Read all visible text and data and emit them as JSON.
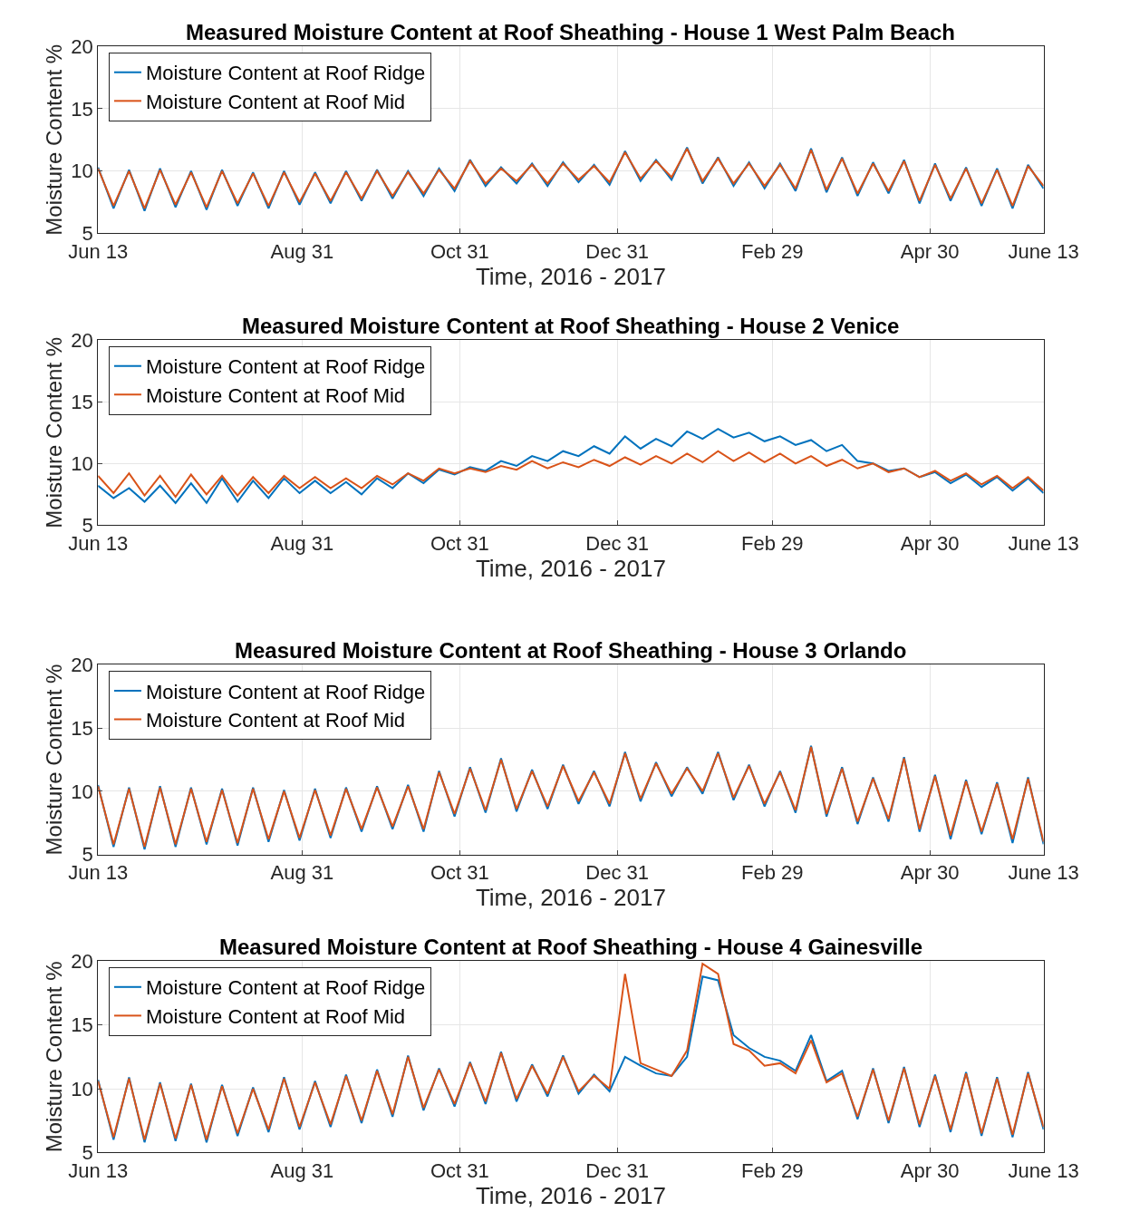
{
  "chart_data": [
    {
      "type": "line",
      "x": [
        "2015-06-13",
        "2015-06-19",
        "2015-06-25",
        "2015-07-01",
        "2015-07-07",
        "2015-07-13",
        "2015-07-19",
        "2015-07-25",
        "2015-07-31",
        "2015-08-06",
        "2015-08-12",
        "2015-08-18",
        "2015-08-24",
        "2015-08-30",
        "2015-09-05",
        "2015-09-11",
        "2015-09-17",
        "2015-09-23",
        "2015-09-29",
        "2015-10-05",
        "2015-10-11",
        "2015-10-17",
        "2015-10-23",
        "2015-10-29",
        "2015-11-04",
        "2015-11-10",
        "2015-11-16",
        "2015-11-22",
        "2015-11-28",
        "2015-12-04",
        "2015-12-10",
        "2015-12-16",
        "2015-12-22",
        "2015-12-28",
        "2016-01-03",
        "2016-01-09",
        "2016-01-15",
        "2016-01-21",
        "2016-01-27",
        "2016-02-02",
        "2016-02-08",
        "2016-02-14",
        "2016-02-20",
        "2016-02-26",
        "2016-03-03",
        "2016-03-09",
        "2016-03-15",
        "2016-03-21",
        "2016-03-27",
        "2016-04-02",
        "2016-04-08",
        "2016-04-14",
        "2016-04-20",
        "2016-04-26",
        "2016-05-02",
        "2016-05-08",
        "2016-05-14",
        "2016-05-20",
        "2016-05-26",
        "2016-06-01",
        "2016-06-07",
        "2016-06-13"
      ],
      "title": "Measured Moisture Content at Roof Sheathing - House 1 West Palm Beach",
      "xlabel": "Time, 2016 - 2017",
      "ylabel": "Moisture Content %",
      "xlim": [
        "2015-06-13",
        "2016-06-13"
      ],
      "xticks": [
        {
          "value": "2015-06-13",
          "label": "Jun 13"
        },
        {
          "value": "2015-08-31",
          "label": "Aug 31"
        },
        {
          "value": "2015-10-31",
          "label": "Oct 31"
        },
        {
          "value": "2015-12-31",
          "label": "Dec 31"
        },
        {
          "value": "2016-02-29",
          "label": "Feb 29"
        },
        {
          "value": "2016-04-30",
          "label": "Apr 30"
        },
        {
          "value": "2016-06-13",
          "label": "June 13"
        }
      ],
      "ylim": [
        5,
        20
      ],
      "yticks": [
        5,
        10,
        15,
        20
      ],
      "grid": true,
      "legend": "top left",
      "series": [
        {
          "name": "Moisture Content at Roof Ridge",
          "color": "#0072bd",
          "values": [
            10.3,
            7.0,
            10.1,
            6.8,
            10.2,
            7.1,
            10.0,
            6.9,
            10.1,
            7.2,
            9.9,
            7.0,
            10.0,
            7.3,
            9.9,
            7.4,
            10.0,
            7.6,
            10.1,
            7.8,
            10.0,
            8.0,
            10.2,
            8.4,
            10.9,
            8.8,
            10.3,
            9.0,
            10.6,
            8.8,
            10.7,
            9.1,
            10.5,
            8.9,
            11.6,
            9.2,
            10.9,
            9.3,
            11.9,
            9.0,
            11.1,
            8.8,
            10.7,
            8.6,
            10.6,
            8.4,
            11.8,
            8.3,
            11.1,
            8.0,
            10.7,
            8.2,
            10.9,
            7.4,
            10.6,
            7.6,
            10.3,
            7.2,
            10.2,
            7.0,
            10.5,
            8.6
          ]
        },
        {
          "name": "Moisture Content at Roof Mid",
          "color": "#d95319",
          "values": [
            10.2,
            7.2,
            10.0,
            7.0,
            10.1,
            7.3,
            9.9,
            7.1,
            10.0,
            7.4,
            9.8,
            7.2,
            9.9,
            7.5,
            9.8,
            7.6,
            9.9,
            7.8,
            10.0,
            8.0,
            9.9,
            8.2,
            10.1,
            8.6,
            10.8,
            9.0,
            10.2,
            9.2,
            10.5,
            9.0,
            10.6,
            9.3,
            10.4,
            9.1,
            11.5,
            9.4,
            10.8,
            9.5,
            11.8,
            9.2,
            11.0,
            9.0,
            10.6,
            8.8,
            10.5,
            8.6,
            11.7,
            8.5,
            11.0,
            8.2,
            10.6,
            8.4,
            10.8,
            7.6,
            10.5,
            7.8,
            10.2,
            7.4,
            10.1,
            7.2,
            10.4,
            8.8
          ]
        }
      ]
    },
    {
      "type": "line",
      "x": [
        "2015-06-13",
        "2015-06-19",
        "2015-06-25",
        "2015-07-01",
        "2015-07-07",
        "2015-07-13",
        "2015-07-19",
        "2015-07-25",
        "2015-07-31",
        "2015-08-06",
        "2015-08-12",
        "2015-08-18",
        "2015-08-24",
        "2015-08-30",
        "2015-09-05",
        "2015-09-11",
        "2015-09-17",
        "2015-09-23",
        "2015-09-29",
        "2015-10-05",
        "2015-10-11",
        "2015-10-17",
        "2015-10-23",
        "2015-10-29",
        "2015-11-04",
        "2015-11-10",
        "2015-11-16",
        "2015-11-22",
        "2015-11-28",
        "2015-12-04",
        "2015-12-10",
        "2015-12-16",
        "2015-12-22",
        "2015-12-28",
        "2016-01-03",
        "2016-01-09",
        "2016-01-15",
        "2016-01-21",
        "2016-01-27",
        "2016-02-02",
        "2016-02-08",
        "2016-02-14",
        "2016-02-20",
        "2016-02-26",
        "2016-03-03",
        "2016-03-09",
        "2016-03-15",
        "2016-03-21",
        "2016-03-27",
        "2016-04-02",
        "2016-04-08",
        "2016-04-14",
        "2016-04-20",
        "2016-04-26",
        "2016-05-02",
        "2016-05-08",
        "2016-05-14",
        "2016-05-20",
        "2016-05-26",
        "2016-06-01",
        "2016-06-07",
        "2016-06-13"
      ],
      "title": "Measured Moisture Content at Roof Sheathing - House 2 Venice",
      "xlabel": "Time, 2016 - 2017",
      "ylabel": "Moisture Content %",
      "xlim": [
        "2015-06-13",
        "2016-06-13"
      ],
      "xticks": [
        {
          "value": "2015-06-13",
          "label": "Jun 13"
        },
        {
          "value": "2015-08-31",
          "label": "Aug 31"
        },
        {
          "value": "2015-10-31",
          "label": "Oct 31"
        },
        {
          "value": "2015-12-31",
          "label": "Dec 31"
        },
        {
          "value": "2016-02-29",
          "label": "Feb 29"
        },
        {
          "value": "2016-04-30",
          "label": "Apr 30"
        },
        {
          "value": "2016-06-13",
          "label": "June 13"
        }
      ],
      "ylim": [
        5,
        20
      ],
      "yticks": [
        5,
        10,
        15,
        20
      ],
      "grid": true,
      "legend": "top left",
      "series": [
        {
          "name": "Moisture Content at Roof Ridge",
          "color": "#0072bd",
          "values": [
            8.2,
            7.2,
            8.0,
            6.9,
            8.2,
            6.8,
            8.4,
            6.8,
            8.8,
            6.9,
            8.6,
            7.2,
            8.8,
            7.6,
            8.6,
            7.6,
            8.5,
            7.5,
            8.8,
            8.0,
            9.2,
            8.4,
            9.5,
            9.1,
            9.7,
            9.4,
            10.2,
            9.8,
            10.6,
            10.2,
            11.0,
            10.6,
            11.4,
            10.8,
            12.2,
            11.2,
            12.0,
            11.4,
            12.6,
            12.0,
            12.8,
            12.1,
            12.5,
            11.8,
            12.2,
            11.5,
            11.9,
            11.0,
            11.5,
            10.2,
            10.0,
            9.4,
            9.6,
            8.9,
            9.3,
            8.4,
            9.1,
            8.1,
            8.9,
            7.8,
            8.8,
            7.6
          ]
        },
        {
          "name": "Moisture Content at Roof Mid",
          "color": "#d95319",
          "values": [
            9.0,
            7.6,
            9.2,
            7.4,
            9.0,
            7.3,
            9.1,
            7.5,
            9.0,
            7.4,
            8.9,
            7.6,
            9.0,
            8.0,
            8.9,
            8.0,
            8.8,
            8.0,
            9.0,
            8.3,
            9.2,
            8.6,
            9.6,
            9.2,
            9.6,
            9.3,
            9.8,
            9.5,
            10.2,
            9.6,
            10.1,
            9.7,
            10.3,
            9.8,
            10.5,
            9.9,
            10.6,
            10.0,
            10.8,
            10.1,
            11.0,
            10.2,
            10.9,
            10.1,
            10.8,
            10.0,
            10.6,
            9.8,
            10.3,
            9.6,
            10.0,
            9.3,
            9.6,
            8.9,
            9.4,
            8.6,
            9.2,
            8.3,
            9.0,
            8.0,
            8.9,
            7.8
          ]
        }
      ]
    },
    {
      "type": "line",
      "x": [
        "2015-06-13",
        "2015-06-19",
        "2015-06-25",
        "2015-07-01",
        "2015-07-07",
        "2015-07-13",
        "2015-07-19",
        "2015-07-25",
        "2015-07-31",
        "2015-08-06",
        "2015-08-12",
        "2015-08-18",
        "2015-08-24",
        "2015-08-30",
        "2015-09-05",
        "2015-09-11",
        "2015-09-17",
        "2015-09-23",
        "2015-09-29",
        "2015-10-05",
        "2015-10-11",
        "2015-10-17",
        "2015-10-23",
        "2015-10-29",
        "2015-11-04",
        "2015-11-10",
        "2015-11-16",
        "2015-11-22",
        "2015-11-28",
        "2015-12-04",
        "2015-12-10",
        "2015-12-16",
        "2015-12-22",
        "2015-12-28",
        "2016-01-03",
        "2016-01-09",
        "2016-01-15",
        "2016-01-21",
        "2016-01-27",
        "2016-02-02",
        "2016-02-08",
        "2016-02-14",
        "2016-02-20",
        "2016-02-26",
        "2016-03-03",
        "2016-03-09",
        "2016-03-15",
        "2016-03-21",
        "2016-03-27",
        "2016-04-02",
        "2016-04-08",
        "2016-04-14",
        "2016-04-20",
        "2016-04-26",
        "2016-05-02",
        "2016-05-08",
        "2016-05-14",
        "2016-05-20",
        "2016-05-26",
        "2016-06-01",
        "2016-06-07",
        "2016-06-13"
      ],
      "title": "Measured Moisture Content at Roof Sheathing - House 3 Orlando",
      "xlabel": "Time, 2016 - 2017",
      "ylabel": "Moisture Content %",
      "xlim": [
        "2015-06-13",
        "2016-06-13"
      ],
      "xticks": [
        {
          "value": "2015-06-13",
          "label": "Jun 13"
        },
        {
          "value": "2015-08-31",
          "label": "Aug 31"
        },
        {
          "value": "2015-10-31",
          "label": "Oct 31"
        },
        {
          "value": "2015-12-31",
          "label": "Dec 31"
        },
        {
          "value": "2016-02-29",
          "label": "Feb 29"
        },
        {
          "value": "2016-04-30",
          "label": "Apr 30"
        },
        {
          "value": "2016-06-13",
          "label": "June 13"
        }
      ],
      "ylim": [
        5,
        20
      ],
      "yticks": [
        5,
        10,
        15,
        20
      ],
      "grid": true,
      "legend": "top left",
      "series": [
        {
          "name": "Moisture Content at Roof Ridge",
          "color": "#0072bd",
          "values": [
            10.5,
            5.6,
            10.3,
            5.4,
            10.4,
            5.6,
            10.3,
            5.8,
            10.2,
            5.7,
            10.3,
            6.0,
            10.1,
            6.1,
            10.2,
            6.3,
            10.3,
            6.8,
            10.4,
            7.0,
            10.5,
            6.8,
            11.6,
            8.0,
            11.9,
            8.3,
            12.6,
            8.4,
            11.7,
            8.6,
            12.1,
            9.0,
            11.6,
            8.8,
            13.1,
            9.2,
            12.3,
            9.6,
            11.9,
            9.8,
            13.1,
            9.3,
            12.1,
            8.8,
            11.6,
            8.3,
            13.6,
            8.0,
            11.9,
            7.4,
            11.1,
            7.6,
            12.7,
            6.8,
            11.3,
            6.2,
            10.9,
            6.6,
            10.7,
            5.9,
            11.1,
            5.8
          ]
        },
        {
          "name": "Moisture Content at Roof Mid",
          "color": "#d95319",
          "values": [
            10.4,
            5.8,
            10.2,
            5.6,
            10.3,
            5.8,
            10.2,
            6.0,
            10.1,
            5.9,
            10.2,
            6.2,
            10.0,
            6.3,
            10.1,
            6.5,
            10.2,
            7.0,
            10.3,
            7.2,
            10.4,
            7.0,
            11.5,
            8.2,
            11.8,
            8.5,
            12.5,
            8.6,
            11.6,
            8.8,
            12.0,
            9.2,
            11.5,
            9.0,
            13.0,
            9.4,
            12.2,
            9.8,
            11.8,
            10.0,
            13.0,
            9.5,
            12.0,
            9.0,
            11.5,
            8.5,
            13.5,
            8.2,
            11.8,
            7.6,
            11.0,
            7.8,
            12.6,
            7.0,
            11.2,
            6.5,
            10.8,
            6.8,
            10.6,
            6.2,
            11.0,
            6.0
          ]
        }
      ]
    },
    {
      "type": "line",
      "x": [
        "2015-06-13",
        "2015-06-19",
        "2015-06-25",
        "2015-07-01",
        "2015-07-07",
        "2015-07-13",
        "2015-07-19",
        "2015-07-25",
        "2015-07-31",
        "2015-08-06",
        "2015-08-12",
        "2015-08-18",
        "2015-08-24",
        "2015-08-30",
        "2015-09-05",
        "2015-09-11",
        "2015-09-17",
        "2015-09-23",
        "2015-09-29",
        "2015-10-05",
        "2015-10-11",
        "2015-10-17",
        "2015-10-23",
        "2015-10-29",
        "2015-11-04",
        "2015-11-10",
        "2015-11-16",
        "2015-11-22",
        "2015-11-28",
        "2015-12-04",
        "2015-12-10",
        "2015-12-16",
        "2015-12-22",
        "2015-12-28",
        "2016-01-03",
        "2016-01-09",
        "2016-01-15",
        "2016-01-21",
        "2016-01-27",
        "2016-02-02",
        "2016-02-08",
        "2016-02-14",
        "2016-02-20",
        "2016-02-26",
        "2016-03-03",
        "2016-03-09",
        "2016-03-15",
        "2016-03-21",
        "2016-03-27",
        "2016-04-02",
        "2016-04-08",
        "2016-04-14",
        "2016-04-20",
        "2016-04-26",
        "2016-05-02",
        "2016-05-08",
        "2016-05-14",
        "2016-05-20",
        "2016-05-26",
        "2016-06-01",
        "2016-06-07",
        "2016-06-13"
      ],
      "title": "Measured Moisture Content at Roof Sheathing - House 4 Gainesville",
      "xlabel": "Time, 2016 - 2017",
      "ylabel": "Moisture Content %",
      "xlim": [
        "2015-06-13",
        "2016-06-13"
      ],
      "xticks": [
        {
          "value": "2015-06-13",
          "label": "Jun 13"
        },
        {
          "value": "2015-08-31",
          "label": "Aug 31"
        },
        {
          "value": "2015-10-31",
          "label": "Oct 31"
        },
        {
          "value": "2015-12-31",
          "label": "Dec 31"
        },
        {
          "value": "2016-02-29",
          "label": "Feb 29"
        },
        {
          "value": "2016-04-30",
          "label": "Apr 30"
        },
        {
          "value": "2016-06-13",
          "label": "June 13"
        }
      ],
      "ylim": [
        5,
        20
      ],
      "yticks": [
        5,
        10,
        15,
        20
      ],
      "grid": true,
      "legend": "top left",
      "series": [
        {
          "name": "Moisture Content at Roof Ridge",
          "color": "#0072bd",
          "values": [
            10.7,
            6.0,
            10.9,
            5.8,
            10.5,
            5.9,
            10.4,
            5.8,
            10.3,
            6.3,
            10.1,
            6.6,
            10.9,
            6.8,
            10.6,
            7.0,
            11.1,
            7.3,
            11.5,
            7.8,
            12.6,
            8.3,
            11.6,
            8.6,
            12.1,
            8.8,
            12.9,
            9.0,
            11.9,
            9.4,
            12.6,
            9.6,
            11.1,
            9.8,
            12.5,
            11.8,
            11.2,
            11.0,
            12.5,
            18.8,
            18.5,
            14.2,
            13.2,
            12.5,
            12.2,
            11.4,
            14.2,
            10.6,
            11.4,
            7.6,
            11.6,
            7.3,
            11.7,
            7.0,
            11.1,
            6.6,
            11.3,
            6.3,
            10.9,
            6.2,
            11.3,
            6.8
          ]
        },
        {
          "name": "Moisture Content at Roof Mid",
          "color": "#d95319",
          "values": [
            10.6,
            6.2,
            10.8,
            6.0,
            10.4,
            6.1,
            10.3,
            6.0,
            10.2,
            6.5,
            10.0,
            6.8,
            10.8,
            7.0,
            10.5,
            7.2,
            11.0,
            7.5,
            11.4,
            8.0,
            12.5,
            8.5,
            11.5,
            8.8,
            12.0,
            9.0,
            12.8,
            9.2,
            11.8,
            9.6,
            12.5,
            9.8,
            11.0,
            10.0,
            19.0,
            12.0,
            11.5,
            11.0,
            13.0,
            19.8,
            19.0,
            13.5,
            13.0,
            11.8,
            12.0,
            11.2,
            13.8,
            10.5,
            11.2,
            7.8,
            11.5,
            7.5,
            11.6,
            7.2,
            11.0,
            6.8,
            11.2,
            6.5,
            10.8,
            6.4,
            11.2,
            7.0
          ]
        }
      ]
    }
  ]
}
